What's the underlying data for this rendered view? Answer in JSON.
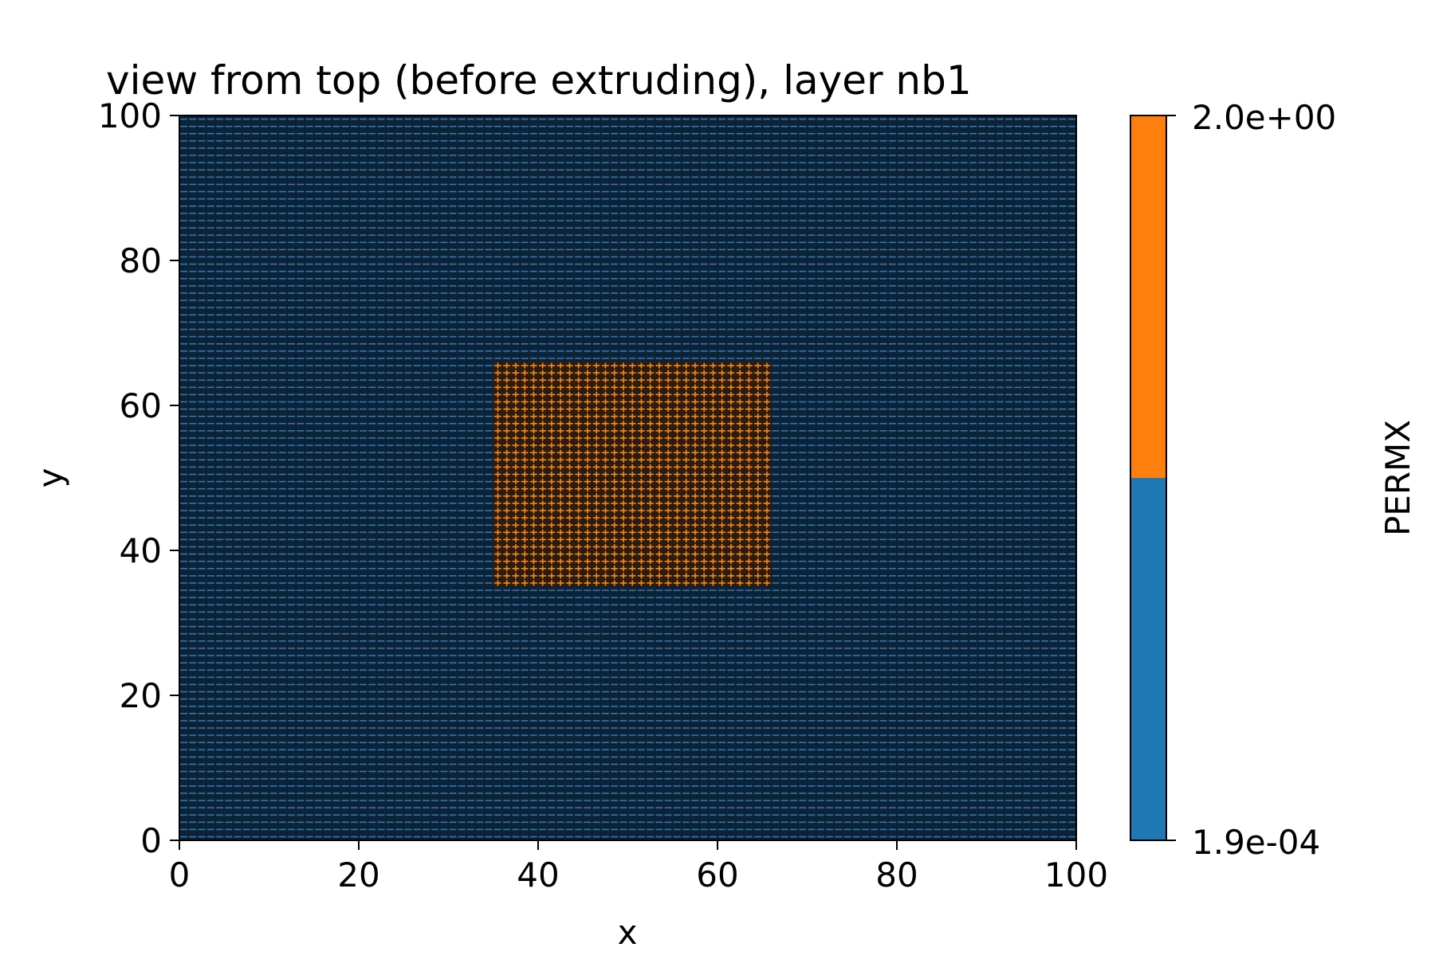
{
  "chart_data": {
    "type": "heatmap",
    "title": "view from top (before extruding), layer nb1",
    "xlabel": "x",
    "ylabel": "y",
    "xlim": [
      0,
      100
    ],
    "ylim": [
      0,
      100
    ],
    "xticks": [
      0,
      20,
      40,
      60,
      80,
      100
    ],
    "yticks": [
      0,
      20,
      40,
      60,
      80,
      100
    ],
    "xtick_labels": [
      "0",
      "20",
      "40",
      "60",
      "80",
      "100"
    ],
    "ytick_labels": [
      "0",
      "20",
      "40",
      "60",
      "80",
      "100"
    ],
    "grid": {
      "nx": 100,
      "ny": 100,
      "cell_size": 1
    },
    "background_value": 0.00019,
    "regions": [
      {
        "x_range": [
          35,
          66
        ],
        "y_range": [
          35,
          66
        ],
        "value": 2.0
      }
    ],
    "colorbar": {
      "label": "PERMX",
      "tick_labels": [
        "2.0e+00",
        "1.9e-04"
      ],
      "colors": [
        "#ff7f0e",
        "#1f77b4"
      ],
      "boundaries": [
        "1.9e-04",
        "2.0e+00"
      ]
    },
    "colors": {
      "low": "#1f77b4",
      "high": "#ff7f0e",
      "cell_edge": "#0e2236"
    }
  }
}
